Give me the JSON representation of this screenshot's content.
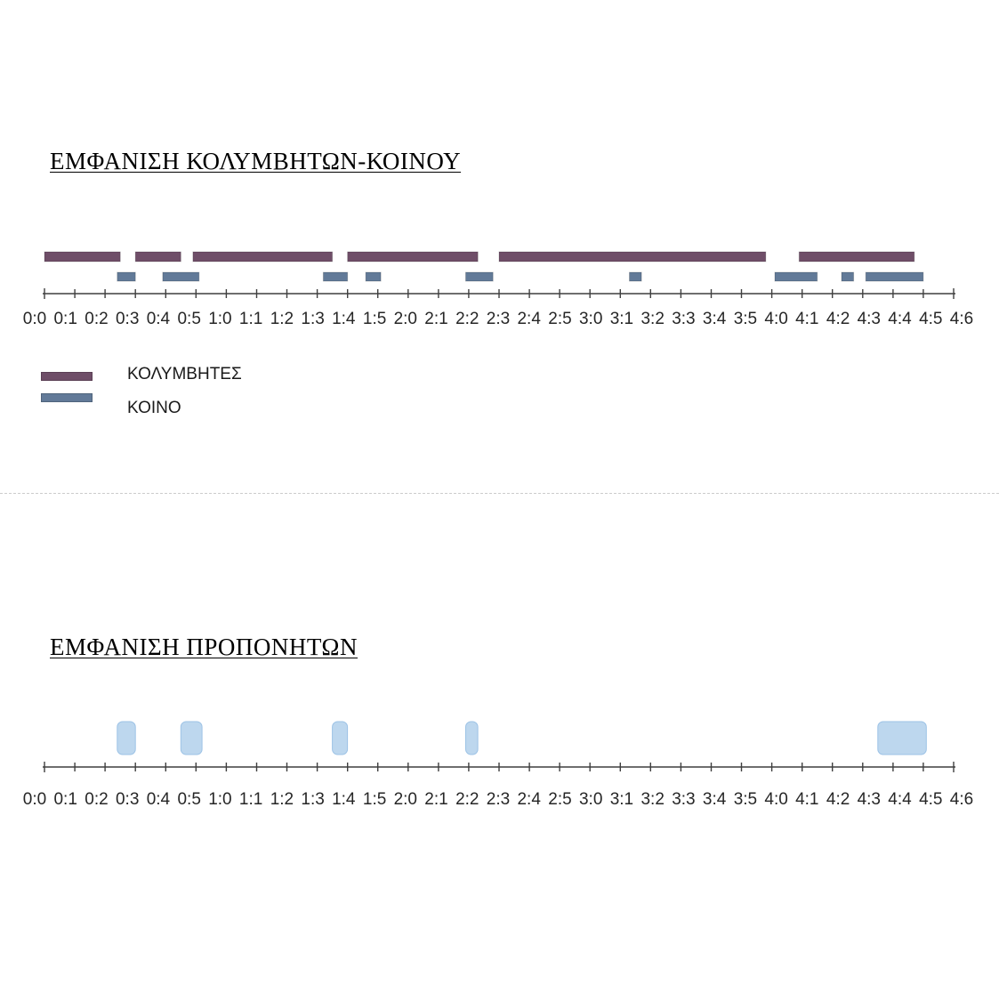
{
  "chart_data": [
    {
      "type": "bar",
      "orientation": "horizontal",
      "title": "ΕΜΦΑΝΙΣΗ ΚΟΛΥΜΒΗΤΩΝ-ΚΟΙΝΟΥ",
      "xlim": [
        "0:00",
        "5:00"
      ],
      "x_ticks": [
        "0:0",
        "0:1",
        "0:2",
        "0:3",
        "0:4",
        "0:5",
        "1:0",
        "1:1",
        "1:2",
        "1:3",
        "1:4",
        "1:5",
        "2:0",
        "2:1",
        "2:2",
        "2:3",
        "2:4",
        "2:5",
        "3:0",
        "3:1",
        "3:2",
        "3:3",
        "3:4",
        "3:5",
        "4:0",
        "4:1",
        "4:2",
        "4:3",
        "4:4",
        "4:5",
        "4:6"
      ],
      "grid": false,
      "legend": "bottom-left",
      "series": [
        {
          "name": "ΚΟΛΥΜΒΗΤΕΣ",
          "color": "#6f4e68",
          "intervals": [
            {
              "start": "0:00",
              "end": "0:25"
            },
            {
              "start": "0:30",
              "end": "0:45"
            },
            {
              "start": "0:49",
              "end": "1:35"
            },
            {
              "start": "1:40",
              "end": "2:23"
            },
            {
              "start": "2:30",
              "end": "3:58"
            },
            {
              "start": "4:09",
              "end": "4:47"
            }
          ]
        },
        {
          "name": "ΚΟΙΝΟ",
          "color": "#627a98",
          "intervals": [
            {
              "start": "0:24",
              "end": "0:30"
            },
            {
              "start": "0:39",
              "end": "0:51"
            },
            {
              "start": "1:32",
              "end": "1:40"
            },
            {
              "start": "1:46",
              "end": "1:51"
            },
            {
              "start": "2:19",
              "end": "2:28"
            },
            {
              "start": "3:13",
              "end": "3:17"
            },
            {
              "start": "4:01",
              "end": "4:15"
            },
            {
              "start": "4:23",
              "end": "4:27"
            },
            {
              "start": "4:31",
              "end": "4:50"
            }
          ]
        }
      ]
    },
    {
      "type": "bar",
      "orientation": "horizontal",
      "title": "ΕΜΦΑΝΙΣΗ ΠΡΟΠΟΝΗΤΩΝ",
      "xlim": [
        "0:00",
        "5:00"
      ],
      "x_ticks": [
        "0:0",
        "0:1",
        "0:2",
        "0:3",
        "0:4",
        "0:5",
        "1:0",
        "1:1",
        "1:2",
        "1:3",
        "1:4",
        "1:5",
        "2:0",
        "2:1",
        "2:2",
        "2:3",
        "2:4",
        "2:5",
        "3:0",
        "3:1",
        "3:2",
        "3:3",
        "3:4",
        "3:5",
        "4:0",
        "4:1",
        "4:2",
        "4:3",
        "4:4",
        "4:5",
        "4:6"
      ],
      "grid": false,
      "series": [
        {
          "color": "#bdd7ee",
          "intervals": [
            {
              "start": "0:24",
              "end": "0:30"
            },
            {
              "start": "0:45",
              "end": "0:52"
            },
            {
              "start": "1:35",
              "end": "1:40"
            },
            {
              "start": "2:19",
              "end": "2:23"
            },
            {
              "start": "4:35",
              "end": "4:51"
            }
          ]
        }
      ]
    }
  ]
}
